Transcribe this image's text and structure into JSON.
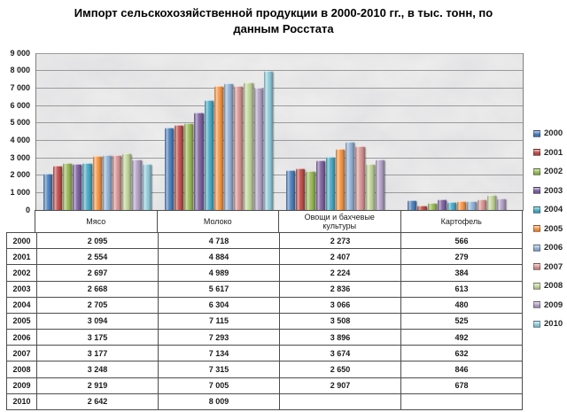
{
  "title": "Импорт сельскохозяйственной продукции в 2000-2010 гг., в тыс. тонн, по данным Росстата",
  "chart_data": {
    "type": "bar",
    "title": "Импорт сельскохозяйственной продукции в 2000-2010 гг., в тыс. тонн, по данным Росстата",
    "categories": [
      "Мясо",
      "Молоко",
      "Овощи и бахчевые культуры",
      "Картофель"
    ],
    "series": [
      {
        "name": "2000",
        "color": "#4F81BD",
        "values": [
          2095,
          4718,
          2273,
          566
        ]
      },
      {
        "name": "2001",
        "color": "#C0504D",
        "values": [
          2554,
          4884,
          2407,
          279
        ]
      },
      {
        "name": "2002",
        "color": "#9BBB59",
        "values": [
          2697,
          4989,
          2224,
          384
        ]
      },
      {
        "name": "2003",
        "color": "#8064A2",
        "values": [
          2668,
          5617,
          2836,
          613
        ]
      },
      {
        "name": "2004",
        "color": "#4BACC6",
        "values": [
          2705,
          6304,
          3066,
          480
        ]
      },
      {
        "name": "2005",
        "color": "#F79646",
        "values": [
          3094,
          7115,
          3508,
          525
        ]
      },
      {
        "name": "2006",
        "color": "#95B3D7",
        "values": [
          3175,
          7293,
          3896,
          492
        ]
      },
      {
        "name": "2007",
        "color": "#D99694",
        "values": [
          3177,
          7134,
          3674,
          632
        ]
      },
      {
        "name": "2008",
        "color": "#C3D69B",
        "values": [
          3248,
          7315,
          2650,
          846
        ]
      },
      {
        "name": "2009",
        "color": "#B3A2C7",
        "values": [
          2919,
          7005,
          2907,
          678
        ]
      },
      {
        "name": "2010",
        "color": "#92CDDC",
        "values": [
          2642,
          8009,
          null,
          null
        ]
      }
    ],
    "ylim": [
      0,
      9000
    ],
    "ytick_step": 1000,
    "grid": true,
    "legend_position": "right",
    "plot_background": "gray marble texture"
  },
  "table": {
    "columns": [
      "Мясо",
      "Молоко",
      "Овощи и бахчевые\nкультуры",
      "Картофель"
    ],
    "rows": [
      {
        "label": "2000",
        "cells": [
          "2 095",
          "4 718",
          "2 273",
          "566"
        ]
      },
      {
        "label": "2001",
        "cells": [
          "2 554",
          "4 884",
          "2 407",
          "279"
        ]
      },
      {
        "label": "2002",
        "cells": [
          "2 697",
          "4 989",
          "2 224",
          "384"
        ]
      },
      {
        "label": "2003",
        "cells": [
          "2 668",
          "5 617",
          "2 836",
          "613"
        ]
      },
      {
        "label": "2004",
        "cells": [
          "2 705",
          "6 304",
          "3 066",
          "480"
        ]
      },
      {
        "label": "2005",
        "cells": [
          "3 094",
          "7 115",
          "3 508",
          "525"
        ]
      },
      {
        "label": "2006",
        "cells": [
          "3 175",
          "7 293",
          "3 896",
          "492"
        ]
      },
      {
        "label": "2007",
        "cells": [
          "3 177",
          "7 134",
          "3 674",
          "632"
        ]
      },
      {
        "label": "2008",
        "cells": [
          "3 248",
          "7 315",
          "2 650",
          "846"
        ]
      },
      {
        "label": "2009",
        "cells": [
          "2 919",
          "7 005",
          "2 907",
          "678"
        ]
      },
      {
        "label": "2010",
        "cells": [
          "2 642",
          "8 009",
          "",
          ""
        ]
      }
    ]
  }
}
